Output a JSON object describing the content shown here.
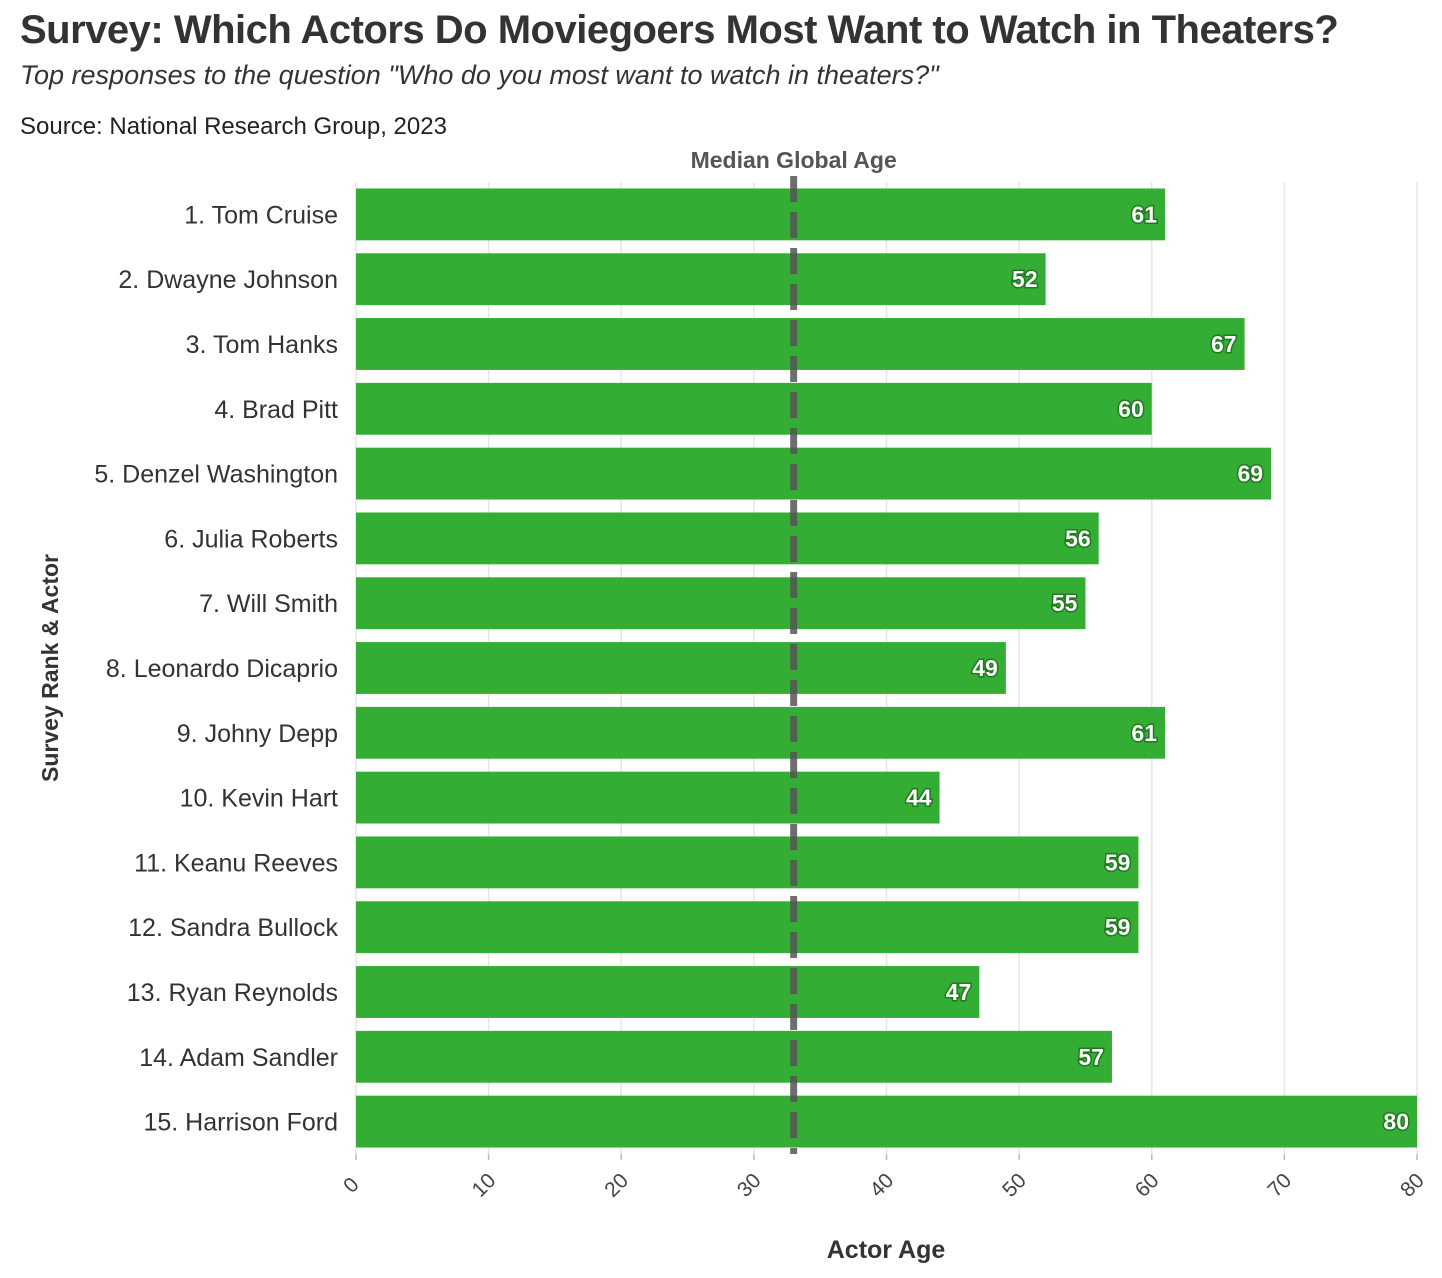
{
  "chart_data": {
    "type": "bar",
    "orientation": "horizontal",
    "title": "Survey: Which Actors Do Moviegoers Most Want to Watch in Theaters?",
    "subtitle": "Top responses to the question \"Who do you most want to watch in theaters?\"",
    "source": "Source: National Research Group, 2023",
    "xlabel": "Actor Age",
    "ylabel": "Survey Rank & Actor",
    "xlim": [
      0,
      80
    ],
    "xticks": [
      "0",
      "10",
      "20",
      "30",
      "40",
      "50",
      "60",
      "70",
      "80"
    ],
    "grid": "vertical",
    "bar_color": "#33ad33",
    "reference_line": {
      "label": "Median Global Age",
      "value": 33,
      "color": "#555555",
      "style": "dashed"
    },
    "categories": [
      "1. Tom Cruise",
      "2. Dwayne Johnson",
      "3. Tom Hanks",
      "4. Brad Pitt",
      "5. Denzel Washington",
      "6. Julia Roberts",
      "7. Will Smith",
      "8. Leonardo Dicaprio",
      "9. Johny Depp",
      "10. Kevin Hart",
      "11. Keanu Reeves",
      "12. Sandra Bullock",
      "13. Ryan Reynolds",
      "14. Adam Sandler",
      "15. Harrison Ford"
    ],
    "values": [
      61,
      52,
      67,
      60,
      69,
      56,
      55,
      49,
      61,
      44,
      59,
      59,
      47,
      57,
      80
    ],
    "data_labels": [
      "61",
      "52",
      "67",
      "60",
      "69",
      "56",
      "55",
      "49",
      "61",
      "44",
      "59",
      "59",
      "47",
      "57",
      "80"
    ]
  }
}
